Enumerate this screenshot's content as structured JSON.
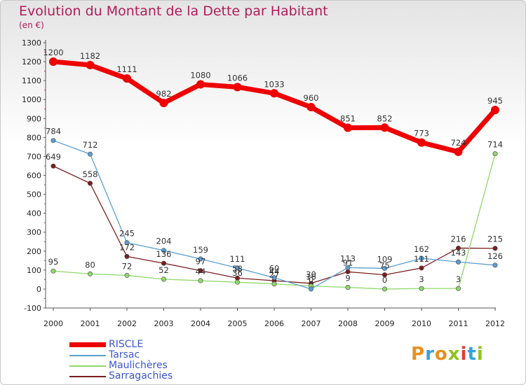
{
  "title": "Evolution du Montant de la Dette par Habitant",
  "subtitle": "(en €)",
  "logo": {
    "parts": [
      {
        "text": "P",
        "color": "#e8901e"
      },
      {
        "text": "r",
        "color": "#3aa0dd"
      },
      {
        "text": "o",
        "color": "#e8901e"
      },
      {
        "text": "x",
        "color": "#8ec31e"
      },
      {
        "text": "i",
        "color": "#e33b3b"
      },
      {
        "text": "t",
        "color": "#3aa0dd"
      },
      {
        "text": "i",
        "color": "#8ec31e"
      }
    ]
  },
  "chart_data": {
    "type": "line",
    "title": "Evolution du Montant de la Dette par Habitant",
    "subtitle": "(en €)",
    "x": [
      "2000",
      "2001",
      "2002",
      "2003",
      "2004",
      "2005",
      "2006",
      "2007",
      "2008",
      "2009",
      "2010",
      "2011",
      "2012"
    ],
    "ylim": [
      -100,
      1300
    ],
    "yticks": [
      -100,
      0,
      100,
      200,
      300,
      400,
      500,
      600,
      700,
      800,
      900,
      1000,
      1100,
      1200,
      1300
    ],
    "grid": false,
    "legend_position": "bottom-left",
    "series": [
      {
        "name": "RISCLE",
        "color": "#ee0000",
        "values": [
          1200,
          1182,
          1111,
          982,
          1080,
          1066,
          1033,
          960,
          851,
          852,
          773,
          724,
          945
        ],
        "labels": [
          "1200",
          "1182",
          "1111",
          "982",
          "1080",
          "1066",
          "1033",
          "960",
          "851",
          "852",
          "773",
          "724",
          "945"
        ]
      },
      {
        "name": "Tarsac",
        "color": "#5b9fd2",
        "values": [
          784,
          712,
          245,
          204,
          159,
          111,
          60,
          0,
          113,
          109,
          162,
          143,
          126
        ],
        "labels": [
          "784",
          "712",
          "245",
          "204",
          "159",
          "111",
          "60",
          "0",
          "113",
          "109",
          "162",
          "143",
          "126"
        ]
      },
      {
        "name": "Maulichères",
        "color": "#8fd86a",
        "values": [
          95,
          80,
          72,
          52,
          44,
          36,
          27,
          16,
          9,
          0,
          3,
          3,
          714
        ],
        "labels": [
          "95",
          "80",
          "72",
          "52",
          "44",
          "36",
          "27",
          "16",
          "9",
          "0",
          "3",
          "3",
          "714"
        ]
      },
      {
        "name": "Sarragachies",
        "color": "#7a1e1e",
        "values": [
          649,
          558,
          172,
          136,
          97,
          58,
          44,
          30,
          91,
          75,
          111,
          216,
          215
        ],
        "labels": [
          "649",
          "558",
          "172",
          "136",
          "97",
          "58",
          "44",
          "30",
          "91",
          "75",
          "111",
          "216",
          "215"
        ]
      }
    ]
  }
}
